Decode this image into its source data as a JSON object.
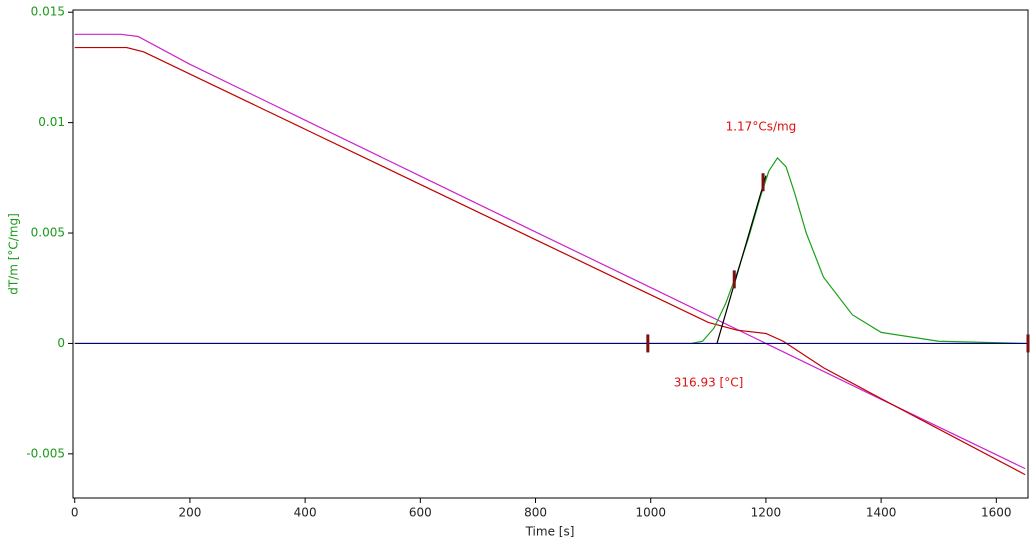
{
  "chart_data": {
    "type": "line",
    "x_label": "Time [s]",
    "y_label": "dT/m  [°C/mg]",
    "xlim": [
      -3,
      1655
    ],
    "ylim": [
      -0.007,
      0.0151
    ],
    "xticks": [
      0,
      200,
      400,
      600,
      800,
      1000,
      1200,
      1400,
      1600
    ],
    "yticks": [
      0.015,
      0.01,
      0.005,
      0,
      -0.005
    ],
    "y_tick_color": "#1a9a1a",
    "series": [
      {
        "color": "#cc22cc",
        "x": [
          0,
          80,
          110,
          200,
          400,
          600,
          800,
          1000,
          1200,
          1400,
          1650
        ],
        "values": [
          0.014,
          0.014,
          0.0139,
          0.01264,
          0.01011,
          0.00758,
          0.00505,
          0.00253,
          0,
          -0.00253,
          -0.00567
        ]
      },
      {
        "color": "#c00000",
        "x": [
          0,
          90,
          120,
          200,
          400,
          600,
          800,
          1000,
          1100,
          1150,
          1200,
          1230,
          1300,
          1400,
          1650
        ],
        "values": [
          0.0134,
          0.0134,
          0.0132,
          0.0122,
          0.0097,
          0.0072,
          0.0047,
          0.0022,
          0.00095,
          0.0006,
          0.00045,
          0.0001,
          -0.0011,
          -0.0025,
          -0.00594
        ]
      },
      {
        "color": "#1aa01a",
        "x": [
          0,
          1070,
          1090,
          1110,
          1130,
          1150,
          1170,
          1190,
          1205,
          1220,
          1235,
          1250,
          1270,
          1300,
          1350,
          1400,
          1500,
          1650
        ],
        "values": [
          0,
          0,
          0.0001,
          0.0007,
          0.0018,
          0.0032,
          0.0048,
          0.0066,
          0.0078,
          0.0084,
          0.008,
          0.0068,
          0.005,
          0.003,
          0.0013,
          0.0005,
          0.0001,
          0
        ]
      },
      {
        "color": "#000080",
        "x": [
          0,
          1655
        ],
        "values": [
          0,
          0
        ]
      },
      {
        "color": "#000000",
        "x": [
          1115,
          1200
        ],
        "values": [
          0,
          0.0076
        ]
      }
    ],
    "markers": {
      "color": "#7a1010",
      "x": [
        995,
        1145,
        1195,
        1655
      ],
      "values": [
        0,
        0.0029,
        0.0073,
        0
      ]
    },
    "annotations": [
      {
        "text": "1.17°Cs/mg",
        "x": 1130,
        "y": 0.0098
      },
      {
        "text": "316.93 [°C]",
        "x": 1040,
        "y": -0.0018
      }
    ],
    "annotation_color": "#e01010"
  }
}
